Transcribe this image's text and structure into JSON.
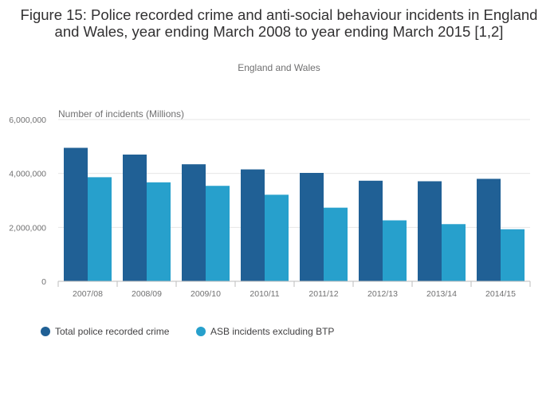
{
  "chart_data": {
    "type": "bar",
    "title": "Figure 15: Police recorded crime and anti-social behaviour incidents in England and Wales, year ending March 2008 to year ending March 2015 [1,2]",
    "subtitle": "England and Wales",
    "xlabel": "",
    "ylabel": "Number of incidents (Millions)",
    "ylim": [
      0,
      6000000
    ],
    "yticks": [
      0,
      2000000,
      4000000,
      6000000
    ],
    "ytick_labels": [
      "0",
      "2,000,000",
      "4,000,000",
      "6,000,000"
    ],
    "grid": true,
    "legend_position": "bottom-left",
    "categories": [
      "2007/08",
      "2008/09",
      "2009/10",
      "2010/11",
      "2011/12",
      "2012/13",
      "2013/14",
      "2014/15"
    ],
    "series": [
      {
        "name": "Total police recorded crime",
        "color": "#206095",
        "values": [
          4950000,
          4700000,
          4340000,
          4150000,
          4020000,
          3730000,
          3710000,
          3800000
        ]
      },
      {
        "name": "ASB incidents excluding BTP",
        "color": "#27a0cc",
        "values": [
          3860000,
          3670000,
          3540000,
          3210000,
          2730000,
          2260000,
          2120000,
          1930000
        ]
      }
    ]
  }
}
